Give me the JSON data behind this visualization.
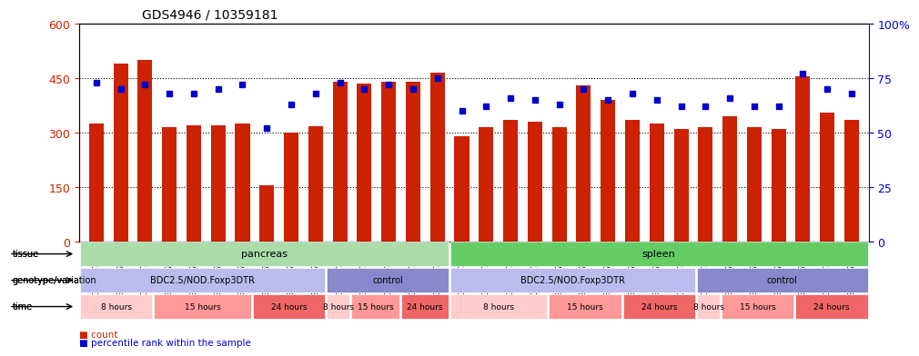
{
  "title": "GDS4946 / 10359181",
  "samples": [
    "GSM957812",
    "GSM957813",
    "GSM957814",
    "GSM957805",
    "GSM957806",
    "GSM957807",
    "GSM957808",
    "GSM957809",
    "GSM957810",
    "GSM957811",
    "GSM957828",
    "GSM957829",
    "GSM957824",
    "GSM957825",
    "GSM957826",
    "GSM957827",
    "GSM957821",
    "GSM957822",
    "GSM957823",
    "GSM957815",
    "GSM957816",
    "GSM957817",
    "GSM957818",
    "GSM957819",
    "GSM957820",
    "GSM957834",
    "GSM957835",
    "GSM957836",
    "GSM957830",
    "GSM957831",
    "GSM957832",
    "GSM957833"
  ],
  "counts": [
    325,
    490,
    500,
    315,
    320,
    320,
    325,
    155,
    300,
    318,
    440,
    435,
    440,
    440,
    465,
    290,
    315,
    335,
    330,
    315,
    430,
    390,
    335,
    325,
    310,
    315,
    345,
    315,
    310,
    455,
    355,
    335
  ],
  "percentiles": [
    73,
    70,
    72,
    68,
    68,
    70,
    72,
    52,
    63,
    68,
    73,
    70,
    72,
    70,
    75,
    60,
    62,
    66,
    65,
    63,
    70,
    65,
    68,
    65,
    62,
    62,
    66,
    62,
    62,
    77,
    70,
    68
  ],
  "bar_color": "#cc2200",
  "dot_color": "#0000cc",
  "left_ylim": [
    0,
    600
  ],
  "right_ylim": [
    0,
    100
  ],
  "left_yticks": [
    0,
    150,
    300,
    450,
    600
  ],
  "right_yticks": [
    0,
    25,
    50,
    75,
    100
  ],
  "right_yticklabels": [
    "0",
    "25",
    "50",
    "75",
    "100%"
  ],
  "grid_values": [
    150,
    300,
    450
  ],
  "tissue_groups": [
    {
      "label": "pancreas",
      "start": 0,
      "end": 15,
      "color": "#aaddaa"
    },
    {
      "label": "spleen",
      "start": 15,
      "end": 32,
      "color": "#66cc66"
    }
  ],
  "genotype_groups": [
    {
      "label": "BDC2.5/NOD.Foxp3DTR",
      "start": 0,
      "end": 10,
      "color": "#bbbbee"
    },
    {
      "label": "control",
      "start": 10,
      "end": 15,
      "color": "#8888cc"
    },
    {
      "label": "BDC2.5/NOD.Foxp3DTR",
      "start": 15,
      "end": 25,
      "color": "#bbbbee"
    },
    {
      "label": "control",
      "start": 25,
      "end": 32,
      "color": "#8888cc"
    }
  ],
  "time_groups": [
    {
      "label": "8 hours",
      "start": 0,
      "end": 3,
      "color": "#ffcccc"
    },
    {
      "label": "15 hours",
      "start": 3,
      "end": 7,
      "color": "#ff9999"
    },
    {
      "label": "24 hours",
      "start": 7,
      "end": 10,
      "color": "#ee6666"
    },
    {
      "label": "8 hours",
      "start": 10,
      "end": 11,
      "color": "#ffcccc"
    },
    {
      "label": "15 hours",
      "start": 11,
      "end": 13,
      "color": "#ff9999"
    },
    {
      "label": "24 hours",
      "start": 13,
      "end": 15,
      "color": "#ee6666"
    },
    {
      "label": "8 hours",
      "start": 15,
      "end": 19,
      "color": "#ffcccc"
    },
    {
      "label": "15 hours",
      "start": 19,
      "end": 22,
      "color": "#ff9999"
    },
    {
      "label": "24 hours",
      "start": 22,
      "end": 25,
      "color": "#ee6666"
    },
    {
      "label": "8 hours",
      "start": 25,
      "end": 26,
      "color": "#ffcccc"
    },
    {
      "label": "15 hours",
      "start": 26,
      "end": 29,
      "color": "#ff9999"
    },
    {
      "label": "24 hours",
      "start": 29,
      "end": 32,
      "color": "#ee6666"
    }
  ],
  "row_labels": [
    "tissue",
    "genotype/variation",
    "time"
  ],
  "legend_items": [
    {
      "label": "count",
      "color": "#cc2200",
      "marker": "s"
    },
    {
      "label": "percentile rank within the sample",
      "color": "#0000cc",
      "marker": "s"
    }
  ]
}
